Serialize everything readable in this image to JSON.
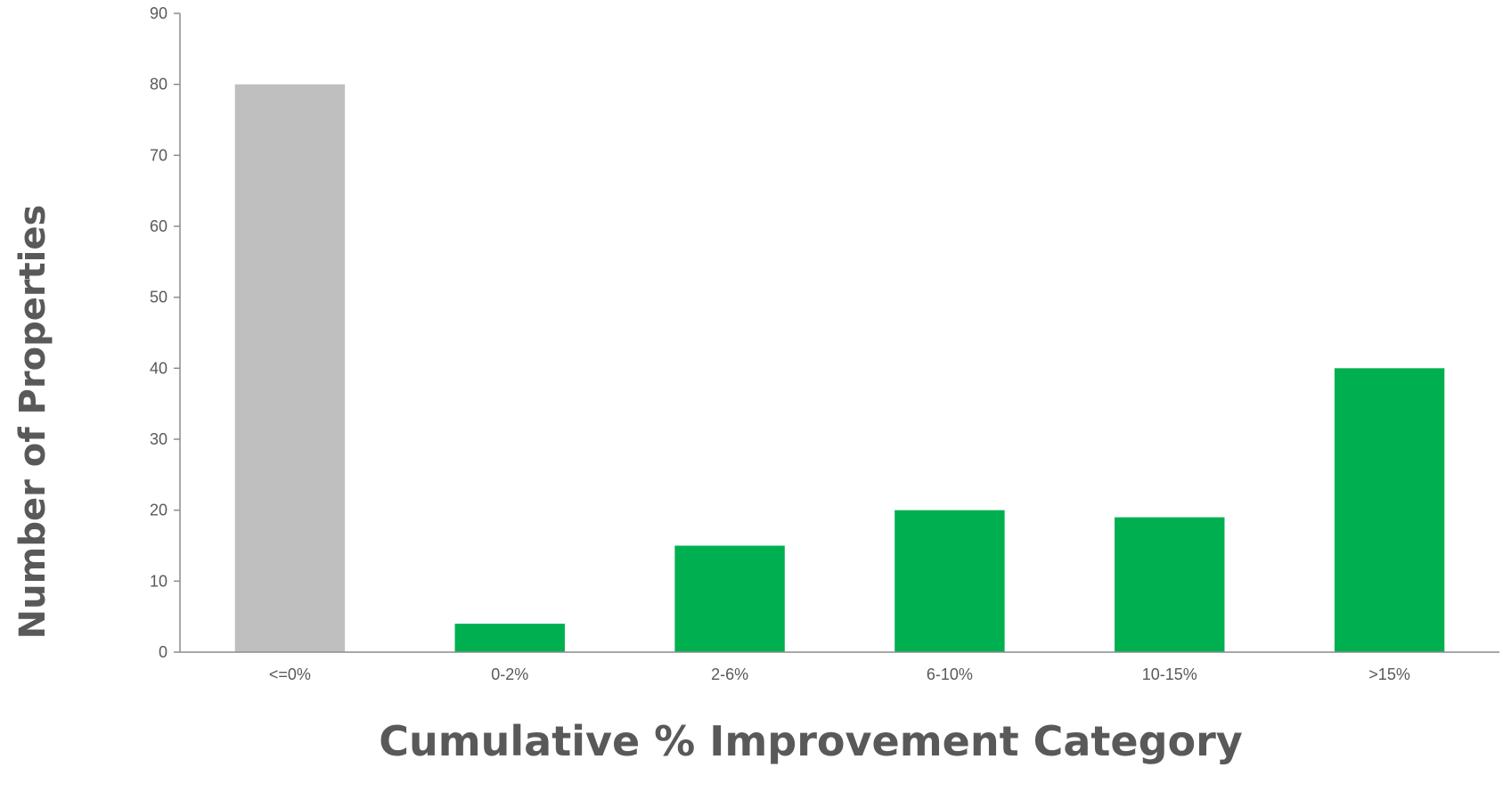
{
  "chart_data": {
    "type": "bar",
    "title": "",
    "xlabel": "Cumulative % Improvement Category",
    "ylabel": "Number of Properties",
    "categories": [
      "<=0%",
      "0-2%",
      "2-6%",
      "6-10%",
      "10-15%",
      ">15%"
    ],
    "values": [
      80,
      4,
      15,
      20,
      19,
      40
    ],
    "bar_colors": [
      "#BFBFBF",
      "#00B050",
      "#00B050",
      "#00B050",
      "#00B050",
      "#00B050"
    ],
    "ylim": [
      0,
      90
    ],
    "yticks": [
      0,
      10,
      20,
      30,
      40,
      50,
      60,
      70,
      80,
      90
    ],
    "grid": false,
    "legend": "none"
  }
}
